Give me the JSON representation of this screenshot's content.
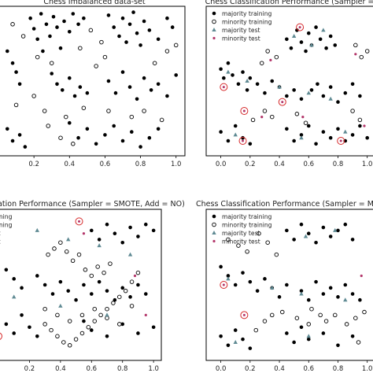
{
  "figure": {
    "colors": {
      "majority": "#000000",
      "minority_edge": "#000000",
      "majority_test": "#5f8a93",
      "minority_test": "#b3366a",
      "misclassified_ring": "#d62728",
      "axes": "#000000"
    }
  },
  "chart_data": [
    {
      "type": "scatter",
      "title": "Chess Imbalanced data-set",
      "xlabel": "",
      "ylabel": "",
      "xlim": [
        0.0,
        1.05
      ],
      "ylim": [
        0.0,
        1.0
      ],
      "xticks": [
        "0.2",
        "0.4",
        "0.6",
        "0.8",
        "1.0"
      ],
      "grid": false,
      "legend": null,
      "series": [
        {
          "role": "majority",
          "marker": "filled-circle",
          "x": [
            0.18,
            0.2,
            0.22,
            0.24,
            0.25,
            0.27,
            0.29,
            0.31,
            0.33,
            0.35,
            0.37,
            0.4,
            0.42,
            0.45,
            0.48,
            0.62,
            0.65,
            0.68,
            0.7,
            0.72,
            0.74,
            0.76,
            0.78,
            0.8,
            0.82,
            0.85,
            0.9,
            0.95,
            0.98,
            0.05,
            0.08,
            0.1,
            0.12,
            0.3,
            0.33,
            0.36,
            0.4,
            0.43,
            0.46,
            0.5,
            0.62,
            0.66,
            0.7,
            0.74,
            0.78,
            0.82,
            0.86,
            0.9,
            0.95,
            1.0,
            0.05,
            0.08,
            0.12,
            0.15,
            0.4,
            0.45,
            0.5,
            0.55,
            0.6,
            0.65,
            0.7,
            0.75,
            0.8,
            0.85,
            0.9
          ],
          "y": [
            0.92,
            0.85,
            0.78,
            0.95,
            0.7,
            0.88,
            0.8,
            0.93,
            0.86,
            0.72,
            0.9,
            0.83,
            0.95,
            0.88,
            0.92,
            0.94,
            0.86,
            0.8,
            0.92,
            0.76,
            0.88,
            0.96,
            0.82,
            0.74,
            0.9,
            0.84,
            0.78,
            0.92,
            0.86,
            0.7,
            0.62,
            0.56,
            0.48,
            0.55,
            0.48,
            0.44,
            0.52,
            0.4,
            0.46,
            0.42,
            0.5,
            0.42,
            0.56,
            0.46,
            0.38,
            0.52,
            0.44,
            0.48,
            0.4,
            0.54,
            0.18,
            0.1,
            0.14,
            0.06,
            0.22,
            0.12,
            0.18,
            0.08,
            0.14,
            0.2,
            0.1,
            0.16,
            0.06,
            0.12,
            0.18
          ]
        },
        {
          "role": "minority",
          "marker": "open-circle",
          "x": [
            0.08,
            0.14,
            0.22,
            0.3,
            0.46,
            0.52,
            0.58,
            0.88,
            0.95,
            1.0,
            0.2,
            0.26,
            0.38,
            0.55,
            0.6,
            0.62,
            0.35,
            0.28,
            0.48,
            0.75,
            0.82,
            0.92,
            0.1,
            0.42
          ],
          "y": [
            0.88,
            0.8,
            0.66,
            0.62,
            0.72,
            0.84,
            0.76,
            0.62,
            0.7,
            0.74,
            0.4,
            0.3,
            0.26,
            0.6,
            0.66,
            0.3,
            0.12,
            0.2,
            0.32,
            0.26,
            0.3,
            0.24,
            0.34,
            0.08
          ]
        }
      ]
    },
    {
      "type": "scatter",
      "title": "Chess Classification Performance (Sampler =",
      "xlabel": "",
      "ylabel": "",
      "xlim": [
        -0.1,
        1.05
      ],
      "ylim": [
        0.0,
        1.0
      ],
      "xticks": [
        "0.0",
        "0.2",
        "0.4",
        "0.6",
        "0.8",
        "1.0"
      ],
      "grid": false,
      "legend": {
        "position": "top-left",
        "entries": [
          "majority training",
          "minority training",
          "majority test",
          "minority test"
        ]
      },
      "series": [
        {
          "name": "majority training",
          "marker": "filled-circle",
          "x": [
            0.45,
            0.48,
            0.52,
            0.55,
            0.58,
            0.6,
            0.62,
            0.65,
            0.68,
            0.72,
            0.75,
            0.78,
            0.0,
            0.02,
            0.05,
            0.08,
            0.12,
            0.15,
            0.18,
            0.2,
            0.25,
            0.3,
            0.35,
            0.4,
            0.45,
            0.5,
            0.55,
            0.62,
            0.66,
            0.7,
            0.75,
            0.8,
            0.85,
            0.9,
            0.95,
            0.0,
            0.05,
            0.1,
            0.15,
            0.2,
            0.45,
            0.5,
            0.55,
            0.6,
            0.65,
            0.7,
            0.75,
            0.8,
            0.85,
            0.9,
            0.95,
            1.0
          ],
          "y": [
            0.78,
            0.72,
            0.84,
            0.76,
            0.7,
            0.82,
            0.74,
            0.86,
            0.78,
            0.72,
            0.8,
            0.74,
            0.58,
            0.52,
            0.62,
            0.54,
            0.48,
            0.56,
            0.44,
            0.52,
            0.48,
            0.42,
            0.5,
            0.46,
            0.4,
            0.44,
            0.38,
            0.44,
            0.48,
            0.4,
            0.46,
            0.36,
            0.42,
            0.48,
            0.4,
            0.16,
            0.1,
            0.2,
            0.12,
            0.08,
            0.18,
            0.1,
            0.14,
            0.2,
            0.08,
            0.16,
            0.12,
            0.18,
            0.1,
            0.14,
            0.2,
            0.12
          ]
        },
        {
          "name": "minority training",
          "marker": "open-circle",
          "x": [
            0.28,
            0.32,
            0.38,
            0.92,
            0.96,
            1.0,
            0.22,
            0.3,
            0.35,
            0.52,
            0.58,
            0.9,
            0.95
          ],
          "y": [
            0.62,
            0.7,
            0.66,
            0.74,
            0.66,
            0.7,
            0.24,
            0.3,
            0.26,
            0.28,
            0.22,
            0.3,
            0.24
          ]
        },
        {
          "name": "majority test",
          "marker": "triangle",
          "x": [
            0.5,
            0.62,
            0.7,
            0.05,
            0.18,
            0.4,
            0.6,
            0.75,
            0.1,
            0.55,
            0.85
          ],
          "y": [
            0.8,
            0.74,
            0.84,
            0.56,
            0.5,
            0.46,
            0.42,
            0.38,
            0.14,
            0.12,
            0.16
          ]
        },
        {
          "name": "minority test",
          "marker": "small-dot",
          "x": [
            0.34,
            0.92,
            0.28,
            0.56,
            0.98
          ],
          "y": [
            0.64,
            0.68,
            0.26,
            0.26,
            0.2
          ]
        },
        {
          "name": "misclassified",
          "marker": "red-ring",
          "x": [
            0.54,
            0.02,
            0.16,
            0.15,
            0.42,
            0.82
          ],
          "y": [
            0.86,
            0.46,
            0.3,
            0.1,
            0.36,
            0.1
          ]
        }
      ]
    },
    {
      "type": "scatter",
      "title": "ication Performance (Sampler = SMOTE, Add = NO)",
      "xlabel": "",
      "ylabel": "",
      "xlim": [
        0.0,
        1.05
      ],
      "ylim": [
        0.0,
        1.0
      ],
      "xticks": [
        "0.2",
        "0.4",
        "0.6",
        "0.8",
        "1.0"
      ],
      "grid": false,
      "legend": {
        "position": "top-left",
        "entries": [
          "training",
          "training",
          "test",
          "test"
        ]
      },
      "series": [
        {
          "name": "training",
          "marker": "filled-circle",
          "x": [
            0.6,
            0.65,
            0.7,
            0.75,
            0.8,
            0.85,
            0.9,
            0.95,
            1.0,
            0.05,
            0.1,
            0.15,
            0.25,
            0.3,
            0.35,
            0.4,
            0.45,
            0.5,
            0.55,
            0.6,
            0.65,
            0.7,
            0.75,
            0.8,
            0.85,
            0.9,
            0.95,
            0.05,
            0.1,
            0.15,
            0.2,
            0.25,
            0.55,
            0.6,
            0.7,
            0.8,
            0.9,
            1.0
          ],
          "y": [
            0.86,
            0.8,
            0.9,
            0.84,
            0.78,
            0.88,
            0.82,
            0.9,
            0.86,
            0.6,
            0.54,
            0.48,
            0.56,
            0.5,
            0.44,
            0.52,
            0.46,
            0.4,
            0.5,
            0.44,
            0.52,
            0.46,
            0.4,
            0.48,
            0.42,
            0.5,
            0.44,
            0.24,
            0.18,
            0.3,
            0.22,
            0.16,
            0.26,
            0.2,
            0.16,
            0.24,
            0.18,
            0.22
          ]
        },
        {
          "name": "training",
          "marker": "open-circle",
          "x": [
            0.3,
            0.34,
            0.38,
            0.42,
            0.46,
            0.5,
            0.54,
            0.58,
            0.62,
            0.66,
            0.7,
            0.74,
            0.78,
            0.82,
            0.86,
            0.9,
            0.32,
            0.36,
            0.4,
            0.44,
            0.48,
            0.52,
            0.56,
            0.6,
            0.64,
            0.68,
            0.72,
            0.3,
            0.38,
            0.46,
            0.54,
            0.62,
            0.7,
            0.78,
            0.86
          ],
          "y": [
            0.24,
            0.2,
            0.16,
            0.12,
            0.1,
            0.14,
            0.18,
            0.22,
            0.26,
            0.3,
            0.34,
            0.38,
            0.42,
            0.46,
            0.52,
            0.58,
            0.7,
            0.74,
            0.78,
            0.72,
            0.66,
            0.7,
            0.6,
            0.56,
            0.62,
            0.58,
            0.64,
            0.34,
            0.3,
            0.26,
            0.3,
            0.34,
            0.28,
            0.24,
            0.36
          ]
        },
        {
          "name": "test",
          "marker": "triangle",
          "x": [
            0.25,
            0.45,
            0.65,
            0.85,
            0.1,
            0.4,
            0.7
          ],
          "y": [
            0.86,
            0.8,
            0.76,
            0.7,
            0.42,
            0.36,
            0.3
          ]
        },
        {
          "name": "test",
          "marker": "small-dot",
          "x": [
            0.55,
            0.88,
            0.95
          ],
          "y": [
            0.84,
            0.56,
            0.3
          ]
        },
        {
          "name": "misclassified",
          "marker": "red-ring",
          "x": [
            0.52,
            0.0
          ],
          "y": [
            0.92,
            0.16
          ]
        }
      ]
    },
    {
      "type": "scatter",
      "title": "Chess Classification Performance (Sampler = M",
      "xlabel": "",
      "ylabel": "",
      "xlim": [
        -0.1,
        1.05
      ],
      "ylim": [
        0.0,
        1.0
      ],
      "xticks": [
        "0.0",
        "0.2",
        "0.4",
        "0.6",
        "0.8",
        "1.0"
      ],
      "grid": false,
      "legend": {
        "position": "top-left",
        "entries": [
          "majority training",
          "minority training",
          "majority test",
          "minority test"
        ]
      },
      "series": [
        {
          "name": "majority training",
          "marker": "filled-circle",
          "x": [
            0.45,
            0.5,
            0.55,
            0.6,
            0.65,
            0.7,
            0.75,
            0.8,
            0.85,
            0.9,
            0.0,
            0.05,
            0.1,
            0.15,
            0.2,
            0.25,
            0.3,
            0.35,
            0.4,
            0.45,
            0.55,
            0.6,
            0.65,
            0.7,
            0.75,
            0.8,
            0.85,
            0.9,
            0.95,
            0.0,
            0.05,
            0.1,
            0.15,
            0.2,
            0.45,
            0.5,
            0.55,
            0.6,
            0.7,
            0.8,
            0.9
          ],
          "y": [
            0.86,
            0.8,
            0.9,
            0.84,
            0.78,
            0.88,
            0.82,
            0.86,
            0.9,
            0.8,
            0.62,
            0.56,
            0.5,
            0.58,
            0.52,
            0.46,
            0.54,
            0.48,
            0.42,
            0.5,
            0.46,
            0.4,
            0.52,
            0.44,
            0.48,
            0.42,
            0.5,
            0.44,
            0.4,
            0.16,
            0.1,
            0.2,
            0.14,
            0.08,
            0.18,
            0.12,
            0.22,
            0.14,
            0.18,
            0.1,
            0.16
          ]
        },
        {
          "name": "minority training",
          "marker": "open-circle",
          "x": [
            0.05,
            0.12,
            0.18,
            0.26,
            0.32,
            0.38,
            0.3,
            0.24,
            0.35,
            0.42,
            0.52,
            0.6,
            0.62,
            0.68,
            0.72,
            0.78,
            0.86,
            0.92,
            0.98,
            0.94
          ],
          "y": [
            0.8,
            0.76,
            0.72,
            0.84,
            0.78,
            0.7,
            0.26,
            0.2,
            0.3,
            0.32,
            0.28,
            0.24,
            0.34,
            0.3,
            0.26,
            0.3,
            0.24,
            0.28,
            0.32,
            0.12
          ]
        },
        {
          "name": "majority test",
          "marker": "triangle",
          "x": [
            0.58,
            0.78,
            0.05,
            0.35,
            0.55,
            0.85,
            0.1,
            0.6
          ],
          "y": [
            0.82,
            0.86,
            0.54,
            0.48,
            0.44,
            0.4,
            0.12,
            0.16
          ]
        },
        {
          "name": "minority test",
          "marker": "small-dot",
          "x": [
            0.96
          ],
          "y": [
            0.56
          ]
        },
        {
          "name": "misclassified",
          "marker": "red-ring",
          "x": [
            0.02,
            0.16
          ],
          "y": [
            0.5,
            0.3
          ]
        }
      ]
    }
  ]
}
